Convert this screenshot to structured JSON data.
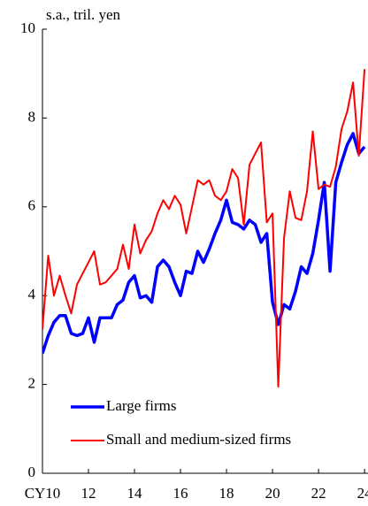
{
  "chart_data": {
    "type": "line",
    "y_label": "s.a., tril. yen",
    "x": [
      2010,
      2010.25,
      2010.5,
      2010.75,
      2011,
      2011.25,
      2011.5,
      2011.75,
      2012,
      2012.25,
      2012.5,
      2012.75,
      2013,
      2013.25,
      2013.5,
      2013.75,
      2014,
      2014.25,
      2014.5,
      2014.75,
      2015,
      2015.25,
      2015.5,
      2015.75,
      2016,
      2016.25,
      2016.5,
      2016.75,
      2017,
      2017.25,
      2017.5,
      2017.75,
      2018,
      2018.25,
      2018.5,
      2018.75,
      2019,
      2019.25,
      2019.5,
      2019.75,
      2020,
      2020.25,
      2020.5,
      2020.75,
      2021,
      2021.25,
      2021.5,
      2021.75,
      2022,
      2022.25,
      2022.5,
      2022.75,
      2023,
      2023.25,
      2023.5,
      2023.75,
      2024
    ],
    "series": [
      {
        "name": "Large firms",
        "color": "#0000ff",
        "values": [
          2.7,
          3.1,
          3.4,
          3.55,
          3.55,
          3.15,
          3.1,
          3.15,
          3.5,
          2.95,
          3.5,
          3.5,
          3.5,
          3.8,
          3.9,
          4.3,
          4.45,
          3.95,
          4.0,
          3.85,
          4.65,
          4.8,
          4.65,
          4.3,
          4.0,
          4.55,
          4.5,
          5.0,
          4.75,
          5.05,
          5.4,
          5.7,
          6.15,
          5.65,
          5.6,
          5.5,
          5.7,
          5.6,
          5.2,
          5.4,
          3.85,
          3.35,
          3.8,
          3.7,
          4.1,
          4.65,
          4.5,
          4.95,
          5.7,
          6.55,
          4.55,
          6.55,
          7.0,
          7.4,
          7.65,
          7.2,
          7.35
        ]
      },
      {
        "name": "Small and medium-sized firms",
        "color": "#ff0000",
        "values": [
          3.25,
          4.9,
          4.0,
          4.45,
          4.0,
          3.6,
          4.25,
          4.5,
          4.75,
          5.0,
          4.25,
          4.3,
          4.45,
          4.6,
          5.15,
          4.6,
          5.6,
          4.95,
          5.25,
          5.45,
          5.85,
          6.15,
          5.95,
          6.25,
          6.05,
          5.4,
          6.0,
          6.6,
          6.5,
          6.6,
          6.25,
          6.15,
          6.35,
          6.85,
          6.65,
          5.6,
          6.95,
          7.2,
          7.45,
          5.65,
          5.85,
          1.95,
          5.3,
          6.35,
          5.75,
          5.7,
          6.35,
          7.7,
          6.4,
          6.5,
          6.45,
          6.9,
          7.75,
          8.15,
          8.8,
          7.15,
          9.1
        ]
      }
    ],
    "xlim": [
      2010,
      2024.15
    ],
    "xticks": [
      {
        "value": 2010,
        "label": "CY10"
      },
      {
        "value": 2012,
        "label": "12"
      },
      {
        "value": 2014,
        "label": "14"
      },
      {
        "value": 2016,
        "label": "16"
      },
      {
        "value": 2018,
        "label": "18"
      },
      {
        "value": 2020,
        "label": "20"
      },
      {
        "value": 2022,
        "label": "22"
      },
      {
        "value": 2024,
        "label": "24"
      }
    ],
    "ylim": [
      0,
      10
    ],
    "yticks": [
      0,
      2,
      4,
      6,
      8,
      10
    ]
  }
}
